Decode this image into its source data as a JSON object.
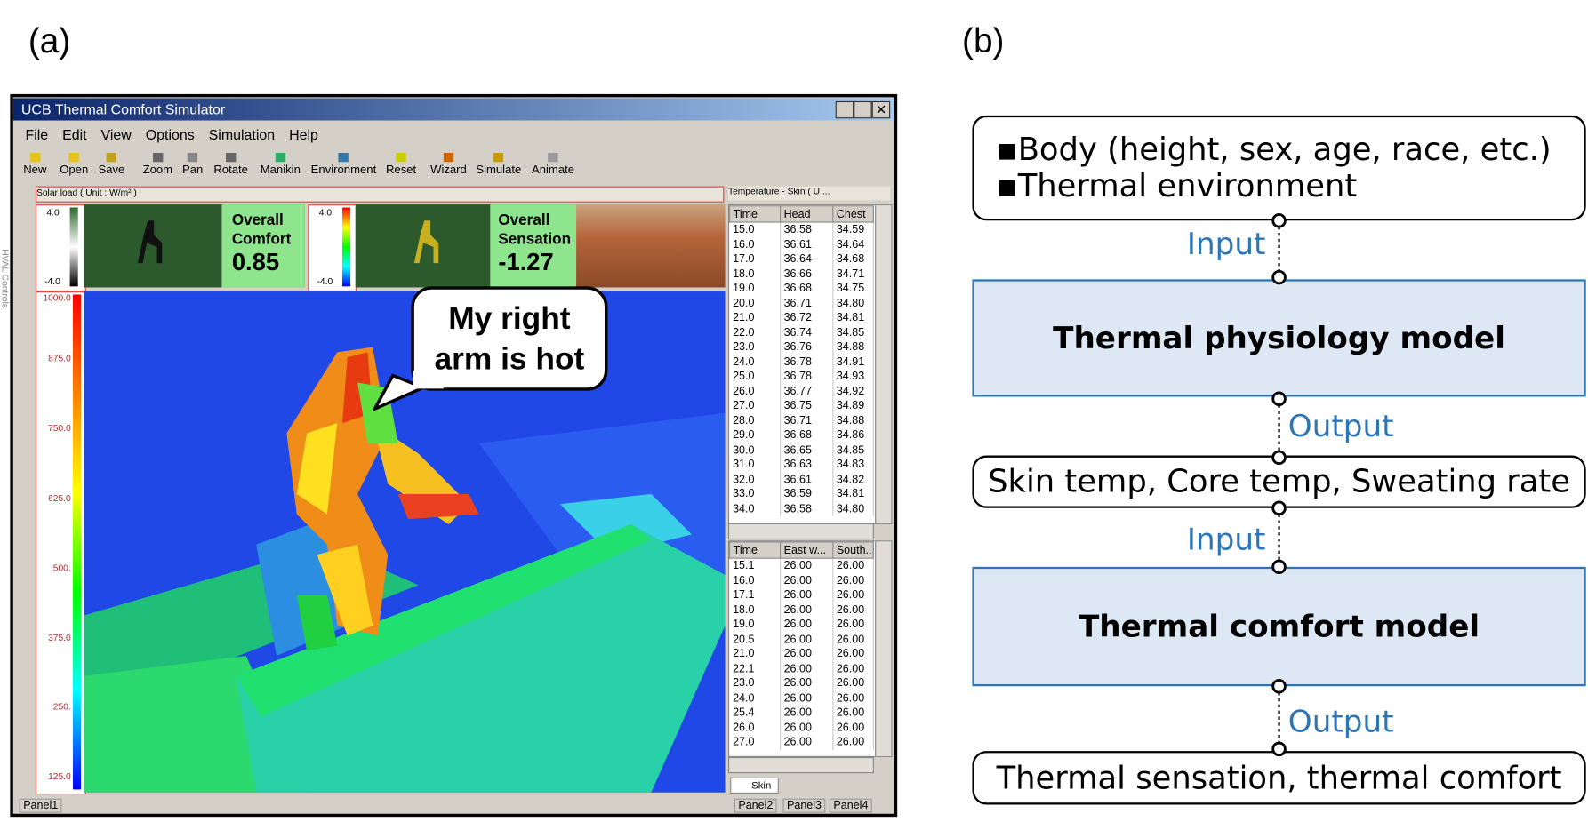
{
  "panel_a": {
    "label": "(a)",
    "window": {
      "title": "UCB Thermal Comfort Simulator",
      "menu": [
        "File",
        "Edit",
        "View",
        "Options",
        "Simulation",
        "Help"
      ],
      "toolbar": [
        "New",
        "Open",
        "Save",
        "Zoom",
        "Pan",
        "Rotate",
        "Manikin",
        "Environment",
        "Reset",
        "Wizard",
        "Simulate",
        "Animate"
      ],
      "solar_header": "Solar load ( Unit : W/m² )",
      "side_label": "HVAL Controls",
      "scale_small": [
        "4.0",
        "-4.0"
      ],
      "scale_large": [
        "1000.0",
        "875.0",
        "750.0",
        "625.0",
        "500.",
        "375.0",
        "250.",
        "125.0"
      ],
      "comfort": {
        "label": "Overall Comfort",
        "value": "0.85"
      },
      "sensation": {
        "label": "Overall Sensation",
        "value": "-1.27"
      },
      "bubble": "My right arm is hot",
      "table1": {
        "header": "Temperature - Skin ( U ...",
        "columns": [
          "Time",
          "Head",
          "Chest"
        ],
        "rows": [
          [
            "15.0",
            "36.58",
            "34.59"
          ],
          [
            "16.0",
            "36.61",
            "34.64"
          ],
          [
            "17.0",
            "36.64",
            "34.68"
          ],
          [
            "18.0",
            "36.66",
            "34.71"
          ],
          [
            "19.0",
            "36.68",
            "34.75"
          ],
          [
            "20.0",
            "36.71",
            "34.80"
          ],
          [
            "21.0",
            "36.72",
            "34.81"
          ],
          [
            "22.0",
            "36.74",
            "34.85"
          ],
          [
            "23.0",
            "36.76",
            "34.88"
          ],
          [
            "24.0",
            "36.78",
            "34.91"
          ],
          [
            "25.0",
            "36.78",
            "34.93"
          ],
          [
            "26.0",
            "36.77",
            "34.92"
          ],
          [
            "27.0",
            "36.75",
            "34.89"
          ],
          [
            "28.0",
            "36.71",
            "34.88"
          ],
          [
            "29.0",
            "36.68",
            "34.86"
          ],
          [
            "30.0",
            "36.65",
            "34.85"
          ],
          [
            "31.0",
            "36.63",
            "34.83"
          ],
          [
            "32.0",
            "36.61",
            "34.82"
          ],
          [
            "33.0",
            "36.59",
            "34.81"
          ],
          [
            "34.0",
            "36.58",
            "34.80"
          ]
        ]
      },
      "table2": {
        "columns": [
          "Time",
          "East w...",
          "South..."
        ],
        "rows": [
          [
            "15.1",
            "26.00",
            "26.00"
          ],
          [
            "16.0",
            "26.00",
            "26.00"
          ],
          [
            "17.1",
            "26.00",
            "26.00"
          ],
          [
            "18.0",
            "26.00",
            "26.00"
          ],
          [
            "19.0",
            "26.00",
            "26.00"
          ],
          [
            "20.5",
            "26.00",
            "26.00"
          ],
          [
            "21.0",
            "26.00",
            "26.00"
          ],
          [
            "22.1",
            "26.00",
            "26.00"
          ],
          [
            "23.0",
            "26.00",
            "26.00"
          ],
          [
            "24.0",
            "26.00",
            "26.00"
          ],
          [
            "25.4",
            "26.00",
            "26.00"
          ],
          [
            "26.0",
            "26.00",
            "26.00"
          ],
          [
            "27.0",
            "26.00",
            "26.00"
          ]
        ]
      },
      "tab": "Skin",
      "status": [
        "Panel1",
        "Panel2",
        "Panel3",
        "Panel4"
      ]
    }
  },
  "panel_b": {
    "label": "(b)",
    "inputs": [
      "Body (height, sex, age, race, etc.)",
      "Thermal environment"
    ],
    "arrow1": "Input",
    "model1": "Thermal physiology model",
    "arrow2": "Output",
    "outputs1": "Skin temp, Core temp, Sweating rate",
    "arrow3": "Input",
    "model2": "Thermal comfort model",
    "arrow4": "Output",
    "outputs2": "Thermal sensation, thermal comfort"
  }
}
